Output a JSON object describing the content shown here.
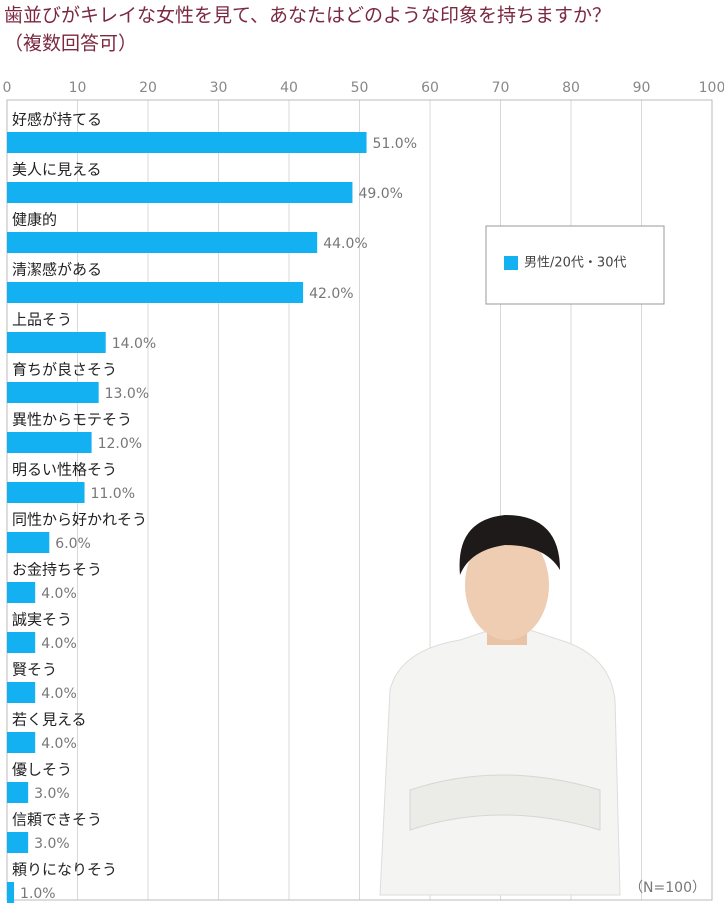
{
  "chart_data": {
    "type": "bar",
    "orientation": "horizontal",
    "title": "歯並びがキレイな女性を見て、あなたはどのような印象を持ちますか？",
    "subtitle": "（複数回答可）",
    "note": "（N=100）",
    "categories": [
      "好感が持てる",
      "美人に見える",
      "健康的",
      "清潔感がある",
      "上品そう",
      "育ちが良さそう",
      "異性からモテそう",
      "明るい性格そう",
      "同性から好かれそう",
      "お金持ちそう",
      "誠実そう",
      "賢そう",
      "若く見える",
      "優しそう",
      "信頼できそう",
      "頼りになりそう"
    ],
    "series": [
      {
        "name": "男性/20代・30代",
        "color": "#13b1f2",
        "values": [
          51,
          49,
          44,
          42,
          14,
          13,
          12,
          11,
          6,
          4,
          4,
          4,
          4,
          3,
          3,
          1
        ],
        "value_labels": [
          "51.0%",
          "49.0%",
          "44.0%",
          "42.0%",
          "14.0%",
          "13.0%",
          "12.0%",
          "11.0%",
          "6.0%",
          "4.0%",
          "4.0%",
          "4.0%",
          "4.0%",
          "3.0%",
          "3.0%",
          "1.0%"
        ]
      }
    ],
    "xlim": [
      0,
      100
    ],
    "xticks": [
      0,
      10,
      20,
      30,
      40,
      50,
      60,
      70,
      80,
      90,
      100
    ],
    "grid": true,
    "legend": "upper right"
  }
}
